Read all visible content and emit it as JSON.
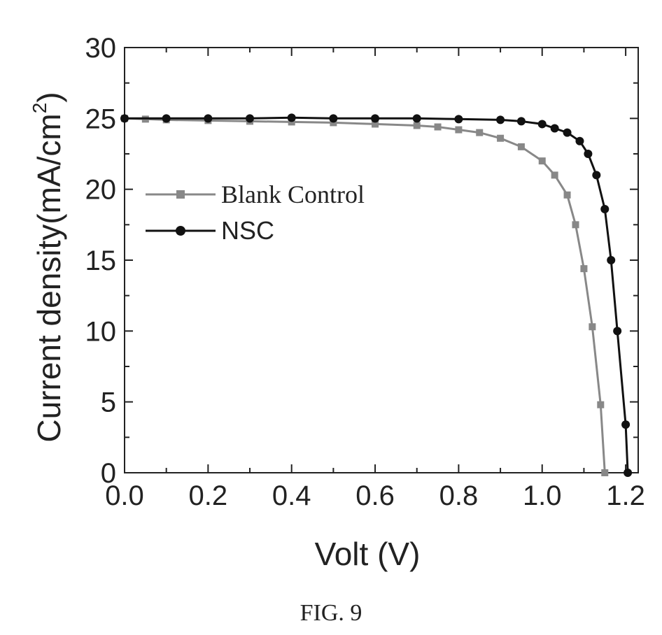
{
  "caption": "FIG. 9",
  "chart_data": {
    "type": "line",
    "title": "",
    "xlabel": "Volt (V)",
    "ylabel": "Current density(mA/cm",
    "ylabel_sup": "2",
    "ylabel_close": ")",
    "xlim": [
      0.0,
      1.23
    ],
    "ylim": [
      0,
      30
    ],
    "xticks": [
      "0.0",
      "0.2",
      "0.4",
      "0.6",
      "0.8",
      "1.0",
      "1.2"
    ],
    "yticks": [
      "0",
      "5",
      "10",
      "15",
      "20",
      "25",
      "30"
    ],
    "grid": false,
    "legend_position": "middle-left",
    "series": [
      {
        "name": "Blank Control",
        "marker": "square",
        "color": "#888888",
        "x": [
          0.0,
          0.05,
          0.1,
          0.2,
          0.3,
          0.4,
          0.5,
          0.6,
          0.7,
          0.75,
          0.8,
          0.85,
          0.9,
          0.95,
          1.0,
          1.03,
          1.06,
          1.08,
          1.1,
          1.12,
          1.14,
          1.15
        ],
        "y": [
          25.0,
          24.95,
          24.9,
          24.85,
          24.8,
          24.75,
          24.7,
          24.6,
          24.5,
          24.4,
          24.2,
          24.0,
          23.6,
          23.0,
          22.0,
          21.0,
          19.6,
          17.5,
          14.4,
          10.3,
          4.8,
          0
        ]
      },
      {
        "name": "NSC",
        "marker": "circle",
        "color": "#111111",
        "x": [
          0.0,
          0.1,
          0.2,
          0.3,
          0.4,
          0.5,
          0.6,
          0.7,
          0.8,
          0.9,
          0.95,
          1.0,
          1.03,
          1.06,
          1.09,
          1.11,
          1.13,
          1.15,
          1.165,
          1.18,
          1.2,
          1.205
        ],
        "y": [
          25.0,
          25.0,
          25.0,
          25.0,
          25.05,
          25.0,
          25.0,
          25.0,
          24.95,
          24.9,
          24.8,
          24.6,
          24.3,
          24.0,
          23.4,
          22.5,
          21.0,
          18.6,
          15.0,
          10.0,
          3.4,
          0
        ]
      }
    ]
  }
}
